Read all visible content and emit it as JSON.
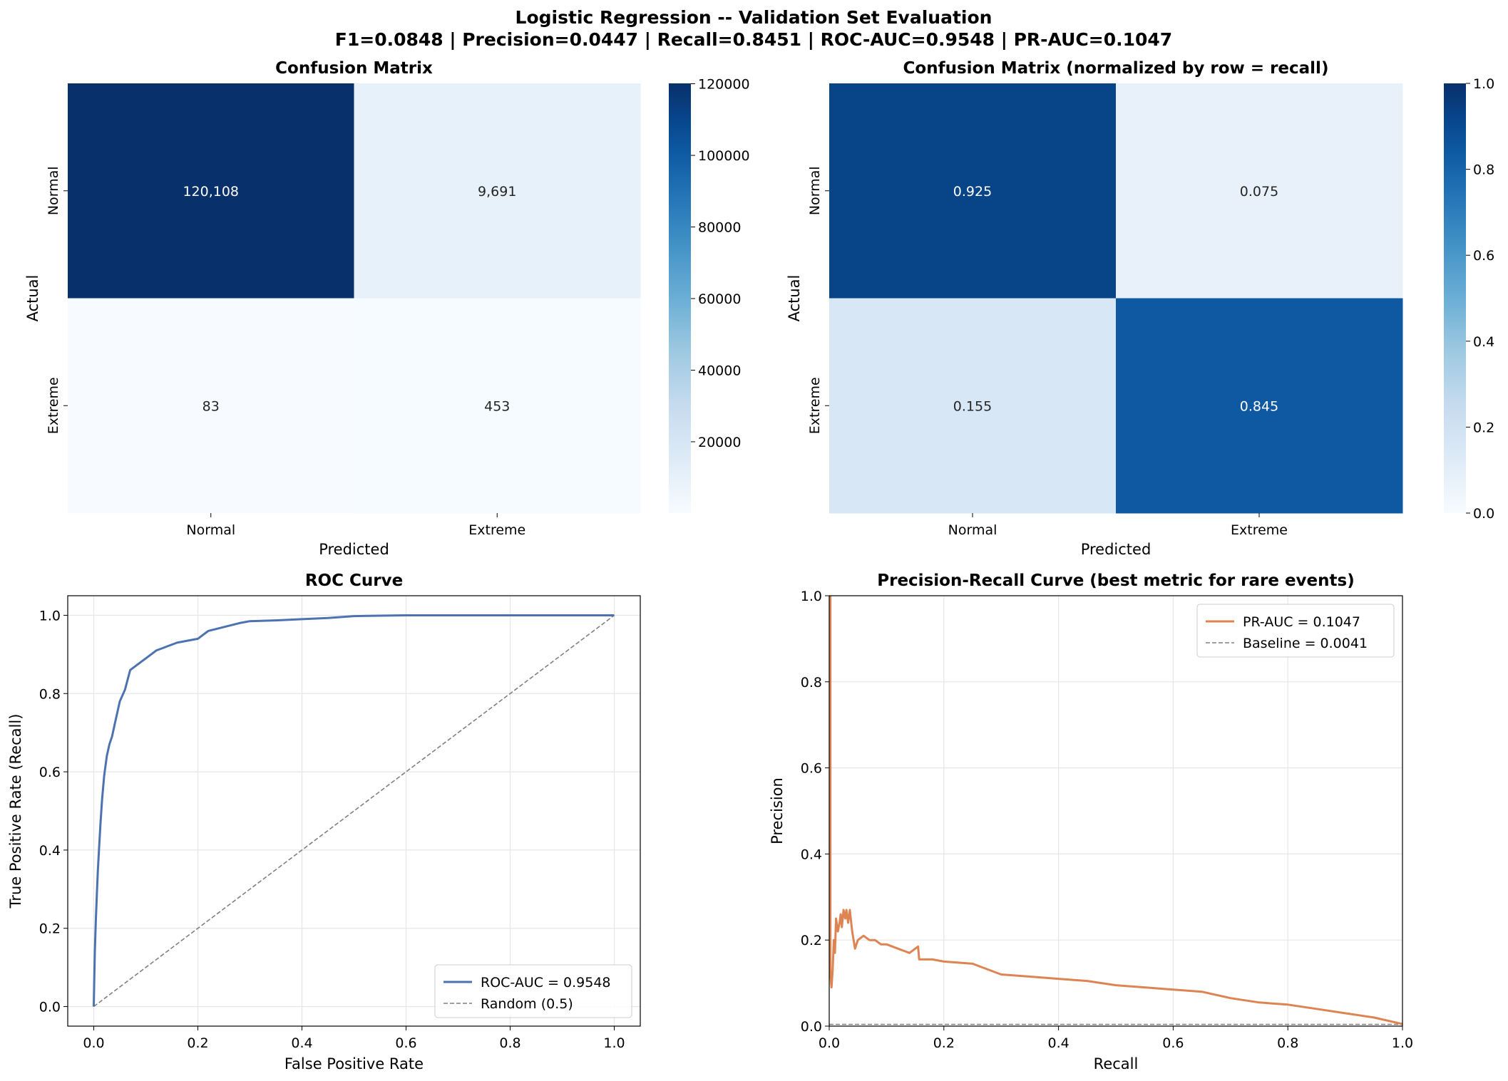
{
  "suptitle": {
    "line1": "Logistic Regression -- Validation Set Evaluation",
    "line2": "F1=0.0848 | Precision=0.0447 | Recall=0.8451 | ROC-AUC=0.9548 | PR-AUC=0.1047"
  },
  "chart_data": [
    {
      "type": "heatmap",
      "title": "Confusion Matrix",
      "xlabel": "Predicted",
      "ylabel": "Actual",
      "x_categories": [
        "Normal",
        "Extreme"
      ],
      "y_categories": [
        "Normal",
        "Extreme"
      ],
      "values": [
        [
          120108,
          9691
        ],
        [
          83,
          453
        ]
      ],
      "cell_labels": [
        [
          "120,108",
          "9,691"
        ],
        [
          "83",
          "453"
        ]
      ],
      "colorbar": {
        "min": 83,
        "max": 120108,
        "ticks": [
          20000,
          40000,
          60000,
          80000,
          100000,
          120000
        ],
        "tick_labels": [
          "20000",
          "40000",
          "60000",
          "80000",
          "100000",
          "120000"
        ]
      },
      "colormap": "Blues"
    },
    {
      "type": "heatmap",
      "title": "Confusion Matrix (normalized by row = recall)",
      "xlabel": "Predicted",
      "ylabel": "Actual",
      "x_categories": [
        "Normal",
        "Extreme"
      ],
      "y_categories": [
        "Normal",
        "Extreme"
      ],
      "values": [
        [
          0.925,
          0.075
        ],
        [
          0.155,
          0.845
        ]
      ],
      "cell_labels": [
        [
          "0.925",
          "0.075"
        ],
        [
          "0.155",
          "0.845"
        ]
      ],
      "colorbar": {
        "min": 0,
        "max": 1,
        "ticks": [
          0,
          0.2,
          0.4,
          0.6,
          0.8,
          1
        ],
        "tick_labels": [
          "0.0",
          "0.2",
          "0.4",
          "0.6",
          "0.8",
          "1.0"
        ]
      },
      "colormap": "Blues"
    },
    {
      "type": "line",
      "title": "ROC Curve",
      "xlabel": "False Positive Rate",
      "ylabel": "True Positive Rate (Recall)",
      "xlim": [
        -0.05,
        1.05
      ],
      "ylim": [
        -0.05,
        1.05
      ],
      "xticks": [
        0,
        0.2,
        0.4,
        0.6,
        0.8,
        1
      ],
      "xtick_labels": [
        "0.0",
        "0.2",
        "0.4",
        "0.6",
        "0.8",
        "1.0"
      ],
      "yticks": [
        0,
        0.2,
        0.4,
        0.6,
        0.8,
        1
      ],
      "ytick_labels": [
        "0.0",
        "0.2",
        "0.4",
        "0.6",
        "0.8",
        "1.0"
      ],
      "grid": true,
      "legend": "lower-right",
      "series": [
        {
          "name": "ROC-AUC = 0.9548",
          "color": "#4c72b0",
          "style": "solid",
          "x": [
            0,
            0.001,
            0.002,
            0.004,
            0.006,
            0.008,
            0.01,
            0.013,
            0.016,
            0.02,
            0.025,
            0.03,
            0.035,
            0.04,
            0.05,
            0.06,
            0.07,
            0.08,
            0.09,
            0.1,
            0.12,
            0.14,
            0.16,
            0.18,
            0.2,
            0.22,
            0.25,
            0.28,
            0.3,
            0.35,
            0.4,
            0.45,
            0.5,
            0.55,
            0.6,
            0.7,
            0.8,
            0.9,
            1.0
          ],
          "y": [
            0,
            0.07,
            0.14,
            0.22,
            0.29,
            0.35,
            0.4,
            0.47,
            0.53,
            0.59,
            0.64,
            0.67,
            0.69,
            0.72,
            0.78,
            0.81,
            0.86,
            0.87,
            0.88,
            0.89,
            0.91,
            0.92,
            0.93,
            0.935,
            0.94,
            0.96,
            0.97,
            0.98,
            0.985,
            0.987,
            0.99,
            0.993,
            0.998,
            0.999,
            1.0,
            1.0,
            1.0,
            1.0,
            1.0
          ]
        },
        {
          "name": "Random (0.5)",
          "color": "#808080",
          "style": "dashed",
          "x": [
            0,
            1
          ],
          "y": [
            0,
            1
          ]
        }
      ]
    },
    {
      "type": "line",
      "title": "Precision-Recall Curve (best metric for rare events)",
      "xlabel": "Recall",
      "ylabel": "Precision",
      "xlim": [
        0,
        1
      ],
      "ylim": [
        0,
        1
      ],
      "xticks": [
        0,
        0.2,
        0.4,
        0.6,
        0.8,
        1
      ],
      "xtick_labels": [
        "0.0",
        "0.2",
        "0.4",
        "0.6",
        "0.8",
        "1.0"
      ],
      "yticks": [
        0,
        0.2,
        0.4,
        0.6,
        0.8,
        1
      ],
      "ytick_labels": [
        "0.0",
        "0.2",
        "0.4",
        "0.6",
        "0.8",
        "1.0"
      ],
      "grid": true,
      "legend": "upper-right",
      "series": [
        {
          "name": "PR-AUC = 0.1047",
          "color": "#dd8452",
          "style": "solid",
          "x": [
            0,
            0.002,
            0.002,
            0.004,
            0.006,
            0.008,
            0.01,
            0.012,
            0.015,
            0.018,
            0.02,
            0.022,
            0.025,
            0.028,
            0.03,
            0.033,
            0.036,
            0.04,
            0.045,
            0.05,
            0.06,
            0.07,
            0.08,
            0.09,
            0.1,
            0.12,
            0.14,
            0.155,
            0.157,
            0.18,
            0.2,
            0.25,
            0.3,
            0.35,
            0.4,
            0.45,
            0.5,
            0.55,
            0.6,
            0.65,
            0.7,
            0.75,
            0.8,
            0.85,
            0.9,
            0.95,
            1.0
          ],
          "y": [
            1.0,
            1.0,
            0.12,
            0.09,
            0.13,
            0.2,
            0.17,
            0.25,
            0.22,
            0.24,
            0.26,
            0.23,
            0.27,
            0.25,
            0.27,
            0.24,
            0.27,
            0.22,
            0.18,
            0.2,
            0.21,
            0.2,
            0.2,
            0.19,
            0.19,
            0.18,
            0.17,
            0.185,
            0.155,
            0.155,
            0.15,
            0.145,
            0.12,
            0.115,
            0.11,
            0.105,
            0.095,
            0.09,
            0.085,
            0.08,
            0.065,
            0.055,
            0.05,
            0.04,
            0.03,
            0.02,
            0.005
          ]
        },
        {
          "name": "Baseline = 0.0041",
          "color": "#808080",
          "style": "dashed",
          "x": [
            0,
            1
          ],
          "y": [
            0.0041,
            0.0041
          ]
        }
      ]
    }
  ]
}
